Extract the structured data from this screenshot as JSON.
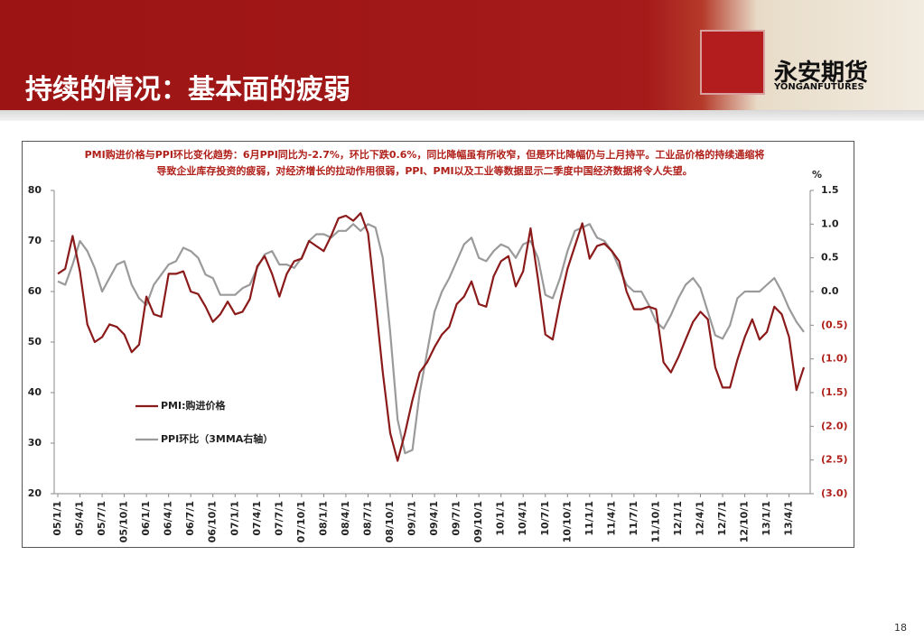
{
  "header": {
    "title": "持续的情况：基本面的疲弱",
    "logo_name": "永安期货",
    "logo_sub": "YONGANFUTURES"
  },
  "page_number": "18",
  "chart_data": {
    "type": "line",
    "title": "PMI购进价格与PPI环比变化趋势：6月PPI同比为-2.7%，环比下跌0.6%，同比降幅虽有所收窄，但是环比降幅仍与上月持平。工业品价格的持续通缩将导致企业库存投资的疲弱，对经济增长的拉动作用很弱，PPI、PMI以及工业等数据显示二季度中国经济数据将令人失望。",
    "categories": [
      "05/1/1",
      null,
      null,
      "05/4/1",
      null,
      null,
      "05/7/1",
      null,
      null,
      "05/10/1",
      null,
      null,
      "06/1/1",
      null,
      null,
      "06/4/1",
      null,
      null,
      "06/7/1",
      null,
      null,
      "06/10/1",
      null,
      null,
      "07/1/1",
      null,
      null,
      "07/4/1",
      null,
      null,
      "07/7/1",
      null,
      null,
      "07/10/1",
      null,
      null,
      "08/1/1",
      null,
      null,
      "08/4/1",
      null,
      null,
      "08/7/1",
      null,
      null,
      "08/10/1",
      null,
      null,
      "09/1/1",
      null,
      null,
      "09/4/1",
      null,
      null,
      "09/7/1",
      null,
      null,
      "09/10/1",
      null,
      null,
      "10/1/1",
      null,
      null,
      "10/4/1",
      null,
      null,
      "10/7/1",
      null,
      null,
      "10/10/1",
      null,
      null,
      "11/1/1",
      null,
      null,
      "11/4/1",
      null,
      null,
      "11/7/1",
      null,
      null,
      "11/10/1",
      null,
      null,
      "12/1/1",
      null,
      null,
      "12/4/1",
      null,
      null,
      "12/7/1",
      null,
      null,
      "12/10/1",
      null,
      null,
      "13/1/1",
      null,
      null,
      "13/4/1",
      null,
      null
    ],
    "series": [
      {
        "name": "PMI:购进价格",
        "color": "#8b1a1a",
        "axis": "y",
        "values": [
          63.5,
          64.5,
          71,
          64,
          53.5,
          50,
          51,
          53.5,
          53,
          51.5,
          48,
          49.5,
          59,
          55.5,
          55,
          63.5,
          63.5,
          64,
          60,
          59.5,
          57,
          54,
          55.5,
          58,
          55.5,
          56,
          58.5,
          65,
          67,
          63.5,
          59,
          63.5,
          66,
          66.5,
          70,
          69,
          68,
          71,
          74.5,
          75,
          74,
          75.5,
          71.5,
          58,
          44,
          32,
          26.5,
          32,
          38.5,
          44,
          46,
          49,
          51.5,
          53,
          57.5,
          59,
          62,
          57.5,
          57,
          63,
          66,
          67,
          61,
          64,
          72.5,
          62.5,
          51.5,
          50.5,
          58,
          64.5,
          69,
          73.5,
          66.5,
          69,
          69.5,
          68,
          66,
          60,
          56.5,
          56.5,
          57,
          56.5,
          46,
          44,
          47,
          50.5,
          54,
          56,
          54.5,
          45,
          41,
          41,
          46.5,
          51,
          54.5,
          50.5,
          52,
          57,
          55.5,
          51,
          40.5,
          45
        ]
      },
      {
        "name": "PPI环比（3MMA右轴）",
        "color": "#9a9a9a",
        "axis": "y2",
        "values": [
          0.15,
          0.1,
          0.4,
          0.75,
          0.6,
          0.35,
          0.0,
          0.2,
          0.4,
          0.45,
          0.1,
          -0.1,
          -0.2,
          0.1,
          0.25,
          0.4,
          0.45,
          0.65,
          0.6,
          0.5,
          0.25,
          0.2,
          -0.05,
          -0.05,
          -0.05,
          0.05,
          0.1,
          0.35,
          0.55,
          0.6,
          0.4,
          0.4,
          0.35,
          0.5,
          0.75,
          0.85,
          0.85,
          0.8,
          0.9,
          0.9,
          1.0,
          0.9,
          1.0,
          0.95,
          0.5,
          -0.6,
          -1.9,
          -2.4,
          -2.35,
          -1.5,
          -0.9,
          -0.3,
          0.0,
          0.2,
          0.45,
          0.7,
          0.8,
          0.5,
          0.45,
          0.6,
          0.7,
          0.65,
          0.5,
          0.7,
          0.75,
          0.5,
          -0.05,
          -0.1,
          0.2,
          0.6,
          0.9,
          0.95,
          1.0,
          0.8,
          0.75,
          0.6,
          0.35,
          0.1,
          0.0,
          0.0,
          -0.2,
          -0.45,
          -0.55,
          -0.35,
          -0.1,
          0.1,
          0.2,
          0.05,
          -0.3,
          -0.65,
          -0.7,
          -0.5,
          -0.1,
          0.0,
          0.0,
          0.0,
          0.1,
          0.2,
          0.0,
          -0.25,
          -0.45,
          -0.6
        ]
      }
    ],
    "ylim": [
      20,
      80
    ],
    "yticks": [
      20,
      30,
      40,
      50,
      60,
      70,
      80
    ],
    "y2lim": [
      -3.0,
      1.5
    ],
    "y2ticks": [
      {
        "value": -3.0,
        "label": "(3.0)"
      },
      {
        "value": -2.5,
        "label": "(2.5)"
      },
      {
        "value": -2.0,
        "label": "(2.0)"
      },
      {
        "value": -1.5,
        "label": "(1.5)"
      },
      {
        "value": -1.0,
        "label": "(1.0)"
      },
      {
        "value": -0.5,
        "label": "(0.5)"
      },
      {
        "value": 0.0,
        "label": "0.0"
      },
      0.5,
      {
        "value": 1.0,
        "label": "1.0"
      },
      1.5
    ],
    "y2label": "%",
    "grid": false
  }
}
